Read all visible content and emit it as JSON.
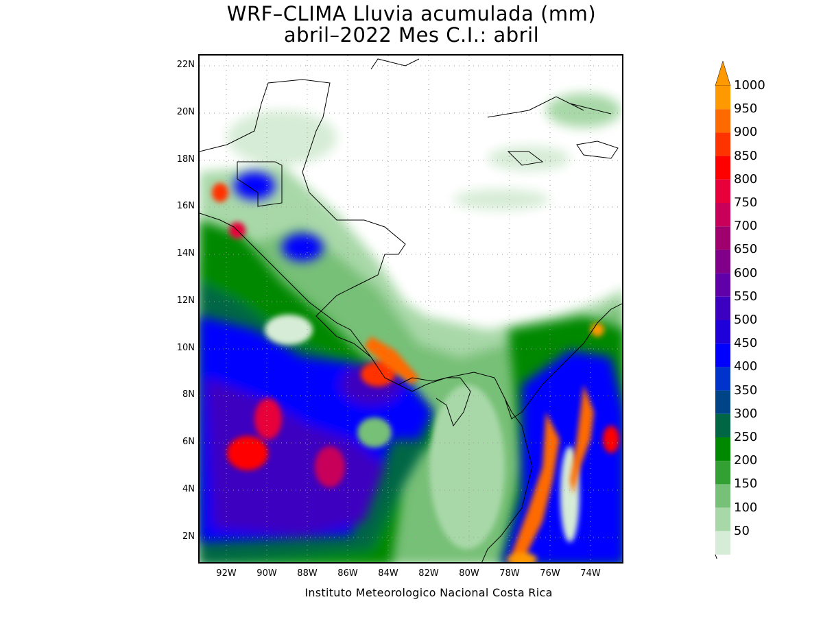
{
  "title_line1": "WRF–CLIMA Lluvia acumulada (mm)",
  "title_line2": "abril–2022 Mes C.I.: abril",
  "credit": "Instituto Meteorologico Nacional Costa Rica",
  "lat_labels": [
    "22N",
    "20N",
    "18N",
    "16N",
    "14N",
    "12N",
    "10N",
    "8N",
    "6N",
    "4N",
    "2N"
  ],
  "lon_labels": [
    "92W",
    "90W",
    "88W",
    "86W",
    "84W",
    "82W",
    "80W",
    "78W",
    "76W",
    "74W"
  ],
  "colorbar": {
    "levels": [
      "1000",
      "950",
      "900",
      "850",
      "800",
      "750",
      "700",
      "650",
      "600",
      "550",
      "500",
      "450",
      "400",
      "350",
      "300",
      "250",
      "200",
      "150",
      "100",
      "50"
    ],
    "colors": [
      "#ff9900",
      "#ff6a00",
      "#ff3300",
      "#ff0000",
      "#e8003a",
      "#c8005a",
      "#a0006e",
      "#80008a",
      "#6000a8",
      "#3c00c0",
      "#2000d8",
      "#0000ff",
      "#0033cc",
      "#004488",
      "#006644",
      "#008800",
      "#33a033",
      "#77c077",
      "#a8d8a8",
      "#d6ecd6"
    ],
    "top_color": "#ff9900"
  }
}
